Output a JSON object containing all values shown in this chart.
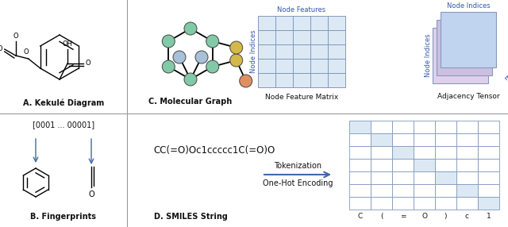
{
  "fig_width": 6.4,
  "fig_height": 2.86,
  "bg_color": "#ffffff",
  "divider_color": "#999999",
  "label_A": "A. Kekulé Diagram",
  "label_B": "B. Fingerprints",
  "label_C": "C. Molecular Graph",
  "label_D": "D. SMILES String",
  "label_NFM": "Node Feature Matrix",
  "label_AT": "Adjacency Tensor",
  "label_NF": "Node Features",
  "label_NI": "Node Indices",
  "label_NI2": "Node Indices",
  "label_NI3": "Node Indices",
  "label_EF": "Edge Features",
  "smiles_text": "CC(=O)Oc1ccccc1C(=O)O",
  "tokenization_text": "Tokenization",
  "onehot_text": "One-Hot Encoding",
  "fingerprint_text": "[0001 ... 00001]",
  "onehot_labels": [
    "C",
    "(",
    "=",
    "O",
    ")",
    "c",
    "1"
  ],
  "matrix_fill_color": "#dce9f5",
  "matrix_border_color": "#8099bb",
  "node_color_teal": "#82c9a8",
  "node_color_yellow": "#d4b84a",
  "node_color_orange": "#e09060",
  "node_color_blue_light": "#a8c0d8",
  "arrow_color": "#4466aa",
  "text_color_blue": "#3355aa",
  "text_color_dark": "#111111",
  "tensor_color_front": "#c0d4f0",
  "tensor_color_mid": "#ccc0e0",
  "tensor_color_back": "#e0d0ee"
}
